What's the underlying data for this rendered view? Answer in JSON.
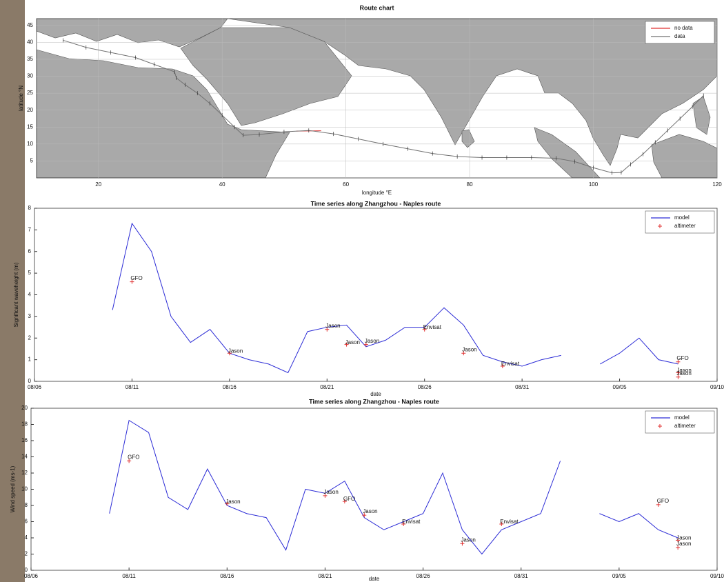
{
  "chart_data": [
    {
      "type": "route-map",
      "title": "Route chart",
      "xlabel": "longitude °E",
      "ylabel": "latitude °N",
      "xlim": [
        10,
        120
      ],
      "ylim": [
        0,
        47
      ],
      "xticks": [
        20,
        40,
        60,
        80,
        100,
        120
      ],
      "yticks": [
        5,
        10,
        15,
        20,
        25,
        30,
        35,
        40,
        45
      ],
      "grid": true,
      "legend": "upper right",
      "series": [
        {
          "name": "no data",
          "color": "#e03030",
          "x": [
            52,
            56
          ],
          "values": [
            13.8,
            13.9
          ]
        },
        {
          "name": "data",
          "color": "#707070",
          "x": [
            14.3,
            18,
            22,
            26,
            29,
            32.3,
            32.6,
            34,
            36,
            38,
            40,
            42,
            43.4,
            46,
            50,
            54,
            58,
            62,
            66,
            70,
            74,
            78,
            82,
            86,
            90,
            94,
            97,
            100,
            103,
            104.5,
            106,
            108,
            110,
            112,
            114,
            116,
            117.8
          ],
          "values": [
            40.6,
            38.5,
            37,
            35.5,
            33.5,
            31.3,
            29.5,
            27.5,
            25,
            22,
            18.5,
            15,
            12.6,
            12.8,
            13.6,
            14,
            13,
            11.5,
            10,
            8.6,
            7.2,
            6.3,
            6,
            6,
            6,
            5.8,
            4.8,
            3,
            1.5,
            1.6,
            4,
            7,
            10.5,
            14,
            17.5,
            21,
            24.3
          ]
        }
      ]
    },
    {
      "type": "line",
      "title": "Time series along Zhangzhou - Naples route",
      "xlabel": "date",
      "ylabel": "Significant waveheight (m)",
      "x": [
        "08/10",
        "08/11",
        "08/12",
        "08/13",
        "08/14",
        "08/15",
        "08/16",
        "08/17",
        "08/18",
        "08/19",
        "08/20",
        "08/21",
        "08/22",
        "08/23",
        "08/24",
        "08/25",
        "08/26",
        "08/27",
        "08/28",
        "08/29",
        "08/30",
        "08/31",
        "09/01",
        "09/02",
        "09/03",
        "09/04",
        "09/05",
        "09/06",
        "09/07",
        "09/08"
      ],
      "xlim": [
        "08/06",
        "09/10"
      ],
      "xticks": [
        "08/06",
        "08/11",
        "08/16",
        "08/21",
        "08/26",
        "08/31",
        "09/05",
        "09/10"
      ],
      "ylim": [
        0,
        8
      ],
      "yticks": [
        0,
        1,
        2,
        3,
        4,
        5,
        6,
        7,
        8
      ],
      "legend": "upper right",
      "series": [
        {
          "name": "model",
          "color": "#2b2bd6",
          "values": [
            3.3,
            7.3,
            6.0,
            3.0,
            1.8,
            2.4,
            1.3,
            1.0,
            0.8,
            0.4,
            2.3,
            2.5,
            2.6,
            1.6,
            1.9,
            2.5,
            2.5,
            3.4,
            2.6,
            1.2,
            0.9,
            0.7,
            1.0,
            1.2,
            null,
            0.8,
            1.3,
            2.0,
            1.0,
            0.8
          ]
        },
        {
          "name": "altimeter",
          "color": "#e03030",
          "marker": "+",
          "x": [
            "08/11",
            "08/16",
            "08/21",
            "08/22",
            "08/23",
            "08/26",
            "08/28",
            "08/30",
            "09/08",
            "09/08",
            "09/08"
          ],
          "values": [
            4.6,
            1.3,
            2.4,
            1.7,
            1.7,
            2.4,
            1.3,
            0.7,
            0.9,
            0.4,
            0.2
          ],
          "labels": [
            "GFO",
            "Jason",
            "Jason",
            "Jason",
            "Jason",
            "Envisat",
            "Jason",
            "Envisat",
            "GFO",
            "Jason",
            "Jason"
          ]
        }
      ]
    },
    {
      "type": "line",
      "title": "Time series along Zhangzhou - Naples route",
      "xlabel": "date",
      "ylabel": "Wind speed (ms-1)",
      "x": [
        "08/10",
        "08/11",
        "08/12",
        "08/13",
        "08/14",
        "08/15",
        "08/16",
        "08/17",
        "08/18",
        "08/19",
        "08/20",
        "08/21",
        "08/22",
        "08/23",
        "08/24",
        "08/25",
        "08/26",
        "08/27",
        "08/28",
        "08/29",
        "08/30",
        "08/31",
        "09/01",
        "09/02",
        "09/03",
        "09/04",
        "09/05",
        "09/06",
        "09/07",
        "09/08"
      ],
      "xlim": [
        "08/06",
        "09/10"
      ],
      "xticks": [
        "08/06",
        "08/11",
        "08/16",
        "08/21",
        "08/26",
        "08/31",
        "09/05",
        "09/10"
      ],
      "ylim": [
        0,
        20
      ],
      "yticks": [
        0,
        2,
        4,
        6,
        8,
        10,
        12,
        14,
        16,
        18,
        20
      ],
      "legend": "upper right",
      "series": [
        {
          "name": "model",
          "color": "#2b2bd6",
          "values": [
            7,
            18.5,
            17,
            9,
            7.5,
            12.5,
            8,
            7,
            6.5,
            2.5,
            10,
            9.5,
            11,
            6.5,
            5,
            6,
            7,
            12,
            5,
            2,
            5,
            6,
            7,
            13.5,
            null,
            7,
            6,
            7,
            5,
            4
          ]
        },
        {
          "name": "altimeter",
          "color": "#e03030",
          "marker": "+",
          "x": [
            "08/11",
            "08/16",
            "08/21",
            "08/22",
            "08/23",
            "08/25",
            "08/28",
            "08/30",
            "09/07",
            "09/08",
            "09/08"
          ],
          "values": [
            13.5,
            8.2,
            9.2,
            8.5,
            6.8,
            5.7,
            3.3,
            5.7,
            8.1,
            3.7,
            2.8
          ],
          "labels": [
            "GFO",
            "Jason",
            "Jason",
            "GFO",
            "Jason",
            "Envisat",
            "Jason",
            "Envisat",
            "GFO",
            "Jason",
            "Jason"
          ]
        }
      ]
    }
  ]
}
